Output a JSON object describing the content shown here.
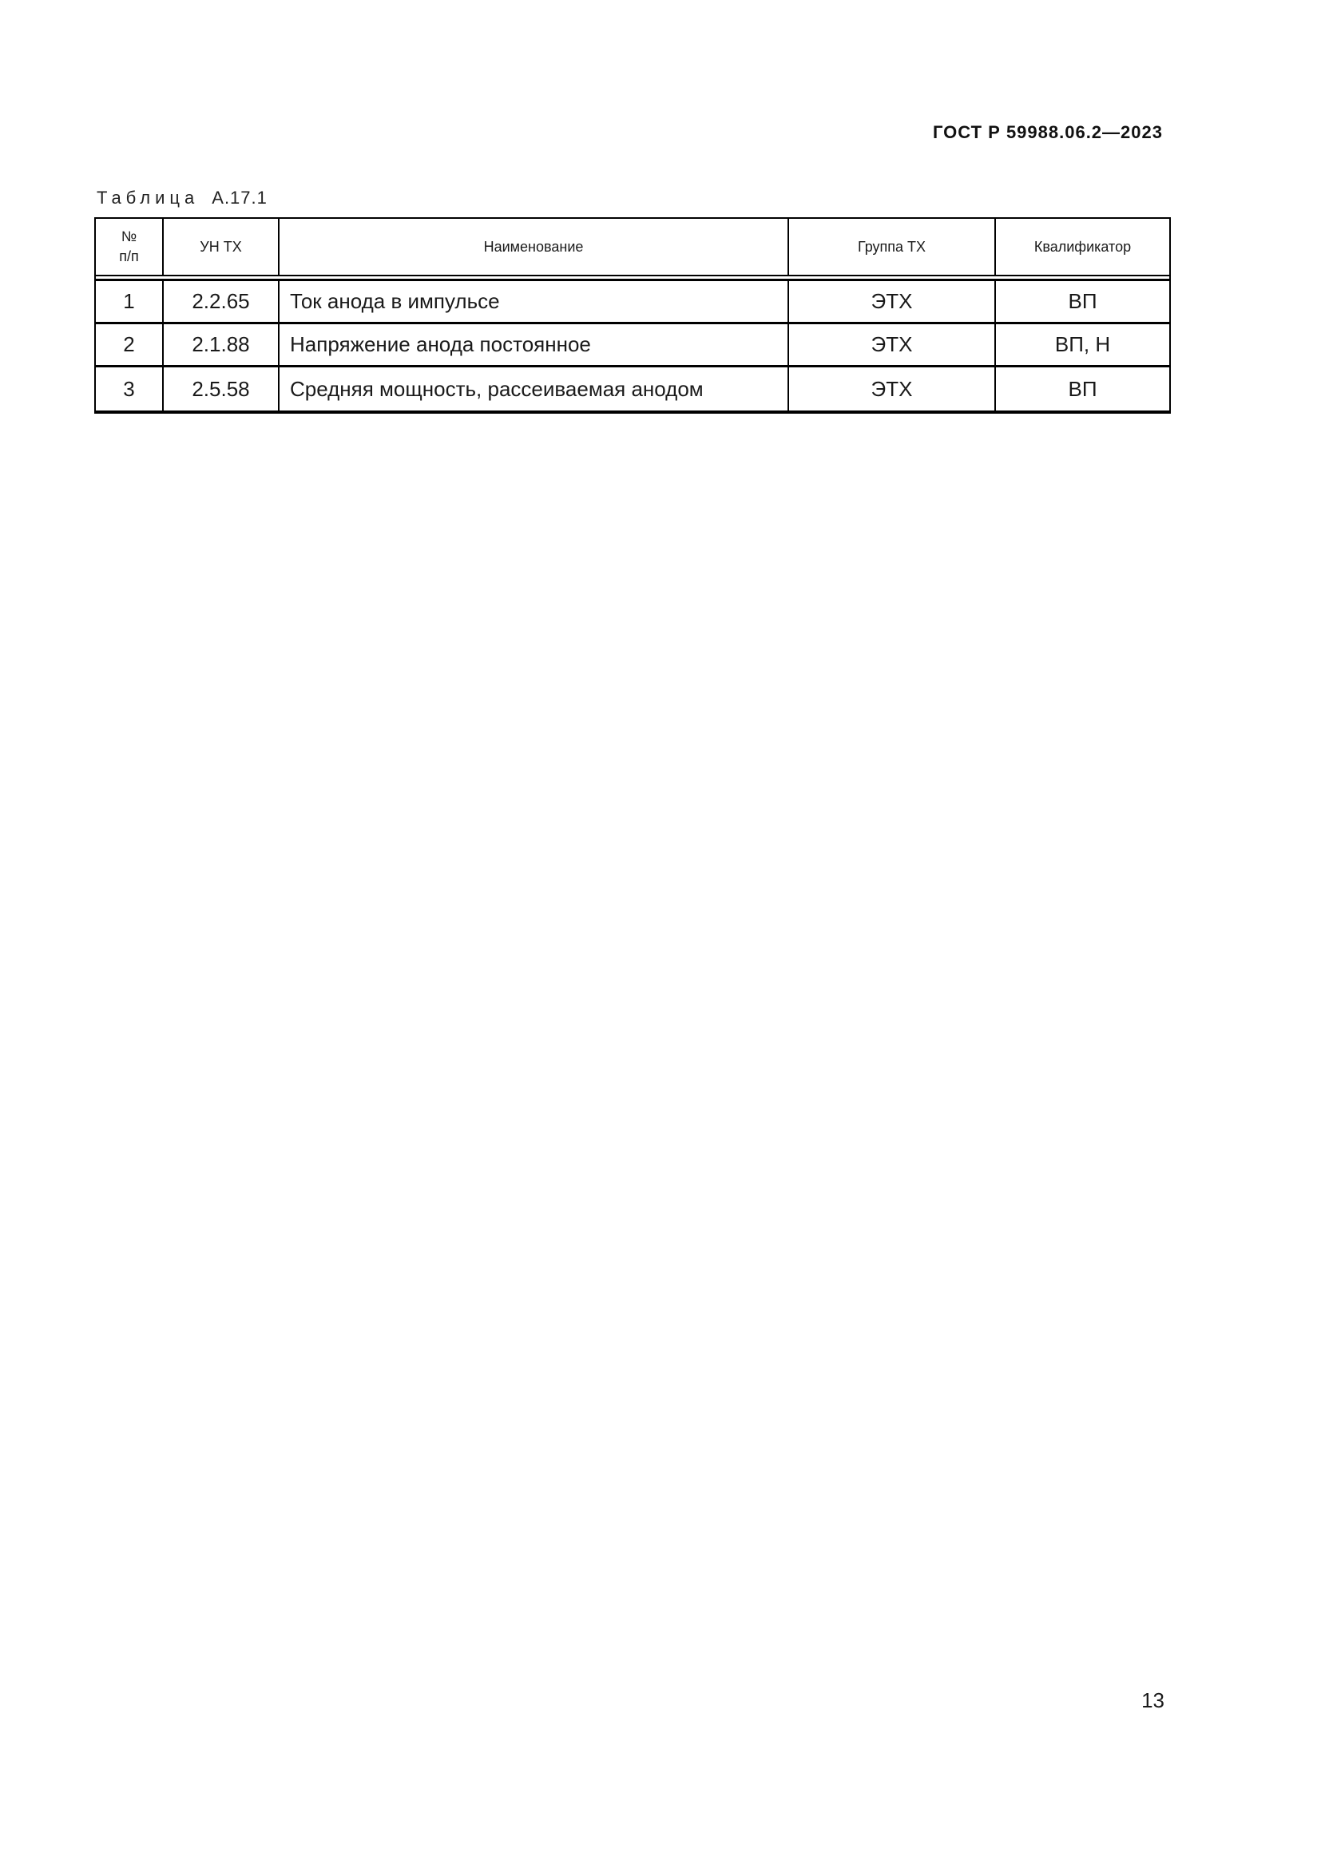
{
  "doc": {
    "standard_code": "ГОСТ Р 59988.06.2—2023",
    "page_number": "13"
  },
  "table": {
    "title_word": "Таблица",
    "title_number": "А.17.1",
    "headers": {
      "num_line1": "№",
      "num_line2": "п/п",
      "un": "УН ТХ",
      "name": "Наименование",
      "group": "Группа ТХ",
      "qualifier": "Квалификатор"
    },
    "rows": [
      {
        "num": "1",
        "un": "2.2.65",
        "name": "Ток анода в импульсе",
        "group": "ЭТХ",
        "qualifier": "ВП"
      },
      {
        "num": "2",
        "un": "2.1.88",
        "name": "Напряжение анода постоянное",
        "group": "ЭТХ",
        "qualifier": "ВП, Н"
      },
      {
        "num": "3",
        "un": "2.5.58",
        "name": "Средняя мощность, рассеиваемая анодом",
        "group": "ЭТХ",
        "qualifier": "ВП"
      }
    ]
  }
}
